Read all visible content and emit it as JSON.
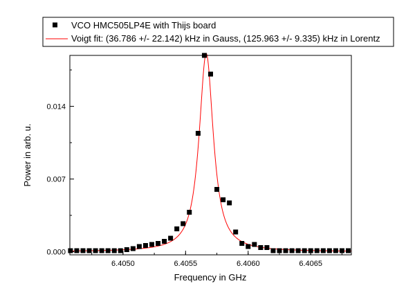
{
  "chart_data": {
    "type": "scatter",
    "xlabel": "Frequency in GHz",
    "ylabel": "Power in arb. u.",
    "xlim": [
      6.404575,
      6.406825
    ],
    "ylim": [
      -0.0003,
      0.0189
    ],
    "x_ticks": [
      {
        "value": 6.405,
        "label": "6.4050"
      },
      {
        "value": 6.4055,
        "label": "6.4055"
      },
      {
        "value": 6.406,
        "label": "6.4060"
      },
      {
        "value": 6.4065,
        "label": "6.4065"
      }
    ],
    "y_ticks": [
      {
        "value": 0.0,
        "label": "0.000"
      },
      {
        "value": 0.007,
        "label": "0.007"
      },
      {
        "value": 0.014,
        "label": "0.014"
      }
    ],
    "x_minor_step": 0.00025,
    "y_minor_step": 0.0035,
    "legend": {
      "position": "top",
      "entries": [
        {
          "label": "VCO HMC505LP4E with Thijs board",
          "marker": "square",
          "color": "#000000"
        },
        {
          "label": "Voigt fit: (36.786 +/- 22.142) kHz in Gauss, (125.963 +/- 9.335) kHz in Lorentz",
          "marker": "line",
          "color": "#ff0000"
        }
      ]
    },
    "series": [
      {
        "name": "VCO HMC505LP4E with Thijs board",
        "kind": "scatter",
        "color": "#000000",
        "points": [
          [
            6.40458,
            0.0001
          ],
          [
            6.40463,
            0.0001
          ],
          [
            6.40468,
            0.0001
          ],
          [
            6.40473,
            0.0001
          ],
          [
            6.40478,
            0.0001
          ],
          [
            6.40483,
            0.0001
          ],
          [
            6.40488,
            0.0001
          ],
          [
            6.40493,
            0.0001
          ],
          [
            6.40498,
            0.0001
          ],
          [
            6.40503,
            0.0002
          ],
          [
            6.40508,
            0.0003
          ],
          [
            6.40513,
            0.0005
          ],
          [
            6.40518,
            0.0006
          ],
          [
            6.40523,
            0.0007
          ],
          [
            6.40528,
            0.0008
          ],
          [
            6.40533,
            0.001
          ],
          [
            6.40538,
            0.0013
          ],
          [
            6.40543,
            0.0022
          ],
          [
            6.40548,
            0.0027
          ],
          [
            6.40553,
            0.0038
          ],
          [
            6.4056,
            0.0114
          ],
          [
            6.40565,
            0.0189
          ],
          [
            6.4057,
            0.0171
          ],
          [
            6.40575,
            0.006
          ],
          [
            6.4058,
            0.005
          ],
          [
            6.40585,
            0.0047
          ],
          [
            6.4059,
            0.0019
          ],
          [
            6.40595,
            0.0008
          ],
          [
            6.406,
            0.0005
          ],
          [
            6.40605,
            0.0007
          ],
          [
            6.4061,
            0.0004
          ],
          [
            6.40615,
            0.0004
          ],
          [
            6.4062,
            0.0001
          ],
          [
            6.40625,
            0.0001
          ],
          [
            6.4063,
            0.0001
          ],
          [
            6.40635,
            0.0001
          ],
          [
            6.4064,
            0.0001
          ],
          [
            6.40645,
            0.0001
          ],
          [
            6.4065,
            0.0001
          ],
          [
            6.40655,
            0.0001
          ],
          [
            6.4066,
            0.0001
          ],
          [
            6.40665,
            0.0001
          ],
          [
            6.4067,
            0.0001
          ],
          [
            6.40675,
            0.0001
          ],
          [
            6.4068,
            0.0001
          ]
        ]
      },
      {
        "name": "Voigt fit: (36.786 +/- 22.142) kHz in Gauss, (125.963 +/- 9.335) kHz in Lorentz",
        "kind": "line",
        "color": "#ff0000",
        "center": 6.405665,
        "amplitude": 0.0191,
        "baseline": 0.0,
        "gauss_fwhm_khz": 36.786,
        "lorentz_fwhm_khz": 125.963
      }
    ]
  }
}
